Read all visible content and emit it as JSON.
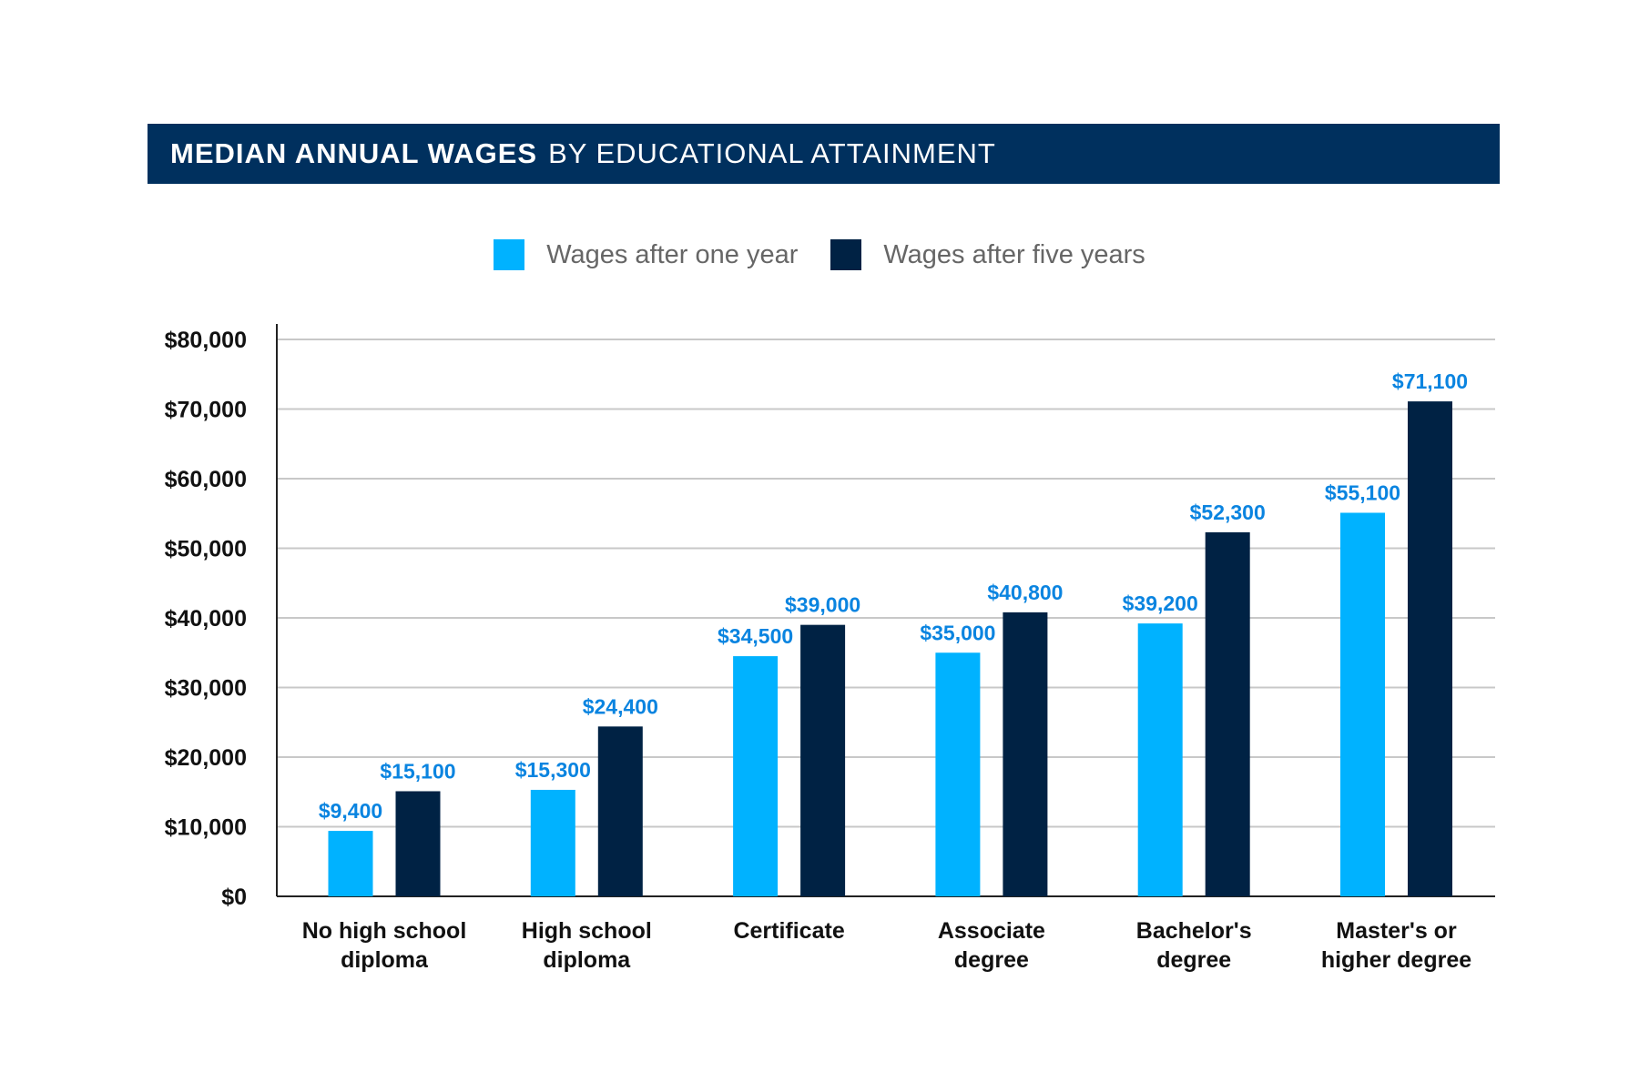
{
  "colors": {
    "banner": "#00305e",
    "one_year": "#00b2ff",
    "five_years": "#002244",
    "value_label": "#0a84e0",
    "grid": "#c8c8c8",
    "axis_text": "#111111"
  },
  "chart_data": {
    "type": "bar",
    "title_bold": "MEDIAN ANNUAL WAGES",
    "title_rest": "BY EDUCATIONAL ATTAINMENT",
    "categories": [
      [
        "No high school",
        "diploma"
      ],
      [
        "High school",
        "diploma"
      ],
      [
        "Certificate"
      ],
      [
        "Associate",
        "degree"
      ],
      [
        "Bachelor's",
        "degree"
      ],
      [
        "Master's or",
        "higher degree"
      ]
    ],
    "series": [
      {
        "name": "Wages after one year",
        "values": [
          9400,
          15300,
          34500,
          35000,
          39200,
          55100
        ],
        "labels": [
          "$9,400",
          "$15,300",
          "$34,500",
          "$35,000",
          "$39,200",
          "$55,100"
        ]
      },
      {
        "name": "Wages after five years",
        "values": [
          15100,
          24400,
          39000,
          40800,
          52300,
          71100
        ],
        "labels": [
          "$15,100",
          "$24,400",
          "$39,000",
          "$40,800",
          "$52,300",
          "$71,100"
        ]
      }
    ],
    "ylim": [
      0,
      80000
    ],
    "yticks": [
      0,
      10000,
      20000,
      30000,
      40000,
      50000,
      60000,
      70000,
      80000
    ],
    "ytick_labels": [
      "$0",
      "$10,000",
      "$20,000",
      "$30,000",
      "$40,000",
      "$50,000",
      "$60,000",
      "$70,000",
      "$80,000"
    ],
    "grid": true,
    "legend_position": "top-center",
    "xlabel": "",
    "ylabel": ""
  }
}
